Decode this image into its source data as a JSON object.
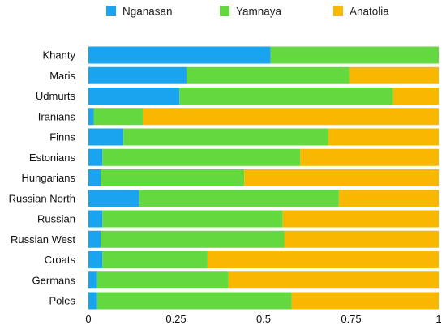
{
  "chart_data": {
    "type": "bar",
    "orientation": "horizontal",
    "stacked": true,
    "title": "",
    "xlabel": "",
    "ylabel": "",
    "xlim": [
      0,
      1
    ],
    "x_ticks": [
      "0",
      "0.25",
      "0.5",
      "0.75",
      "1"
    ],
    "x_tick_values": [
      0,
      0.25,
      0.5,
      0.75,
      1
    ],
    "grid": false,
    "legend_position": "top",
    "categories": [
      "Khanty",
      "Maris",
      "Udmurts",
      "Iranians",
      "Finns",
      "Estonians",
      "Hungarians",
      "Russian North",
      "Russian",
      "Russian West",
      "Croats",
      "Germans",
      "Poles"
    ],
    "series": [
      {
        "name": "Nganasan",
        "color": "#1aa3ee",
        "values": [
          0.52,
          0.28,
          0.26,
          0.015,
          0.1,
          0.04,
          0.035,
          0.145,
          0.04,
          0.035,
          0.04,
          0.025,
          0.025
        ]
      },
      {
        "name": "Yamnaya",
        "color": "#63d83f",
        "values": [
          0.48,
          0.465,
          0.61,
          0.14,
          0.585,
          0.565,
          0.41,
          0.57,
          0.515,
          0.525,
          0.3,
          0.375,
          0.555
        ]
      },
      {
        "name": "Anatolia",
        "color": "#f9b800",
        "values": [
          0.0,
          0.255,
          0.13,
          0.845,
          0.315,
          0.395,
          0.555,
          0.285,
          0.445,
          0.44,
          0.66,
          0.6,
          0.42
        ]
      }
    ]
  }
}
